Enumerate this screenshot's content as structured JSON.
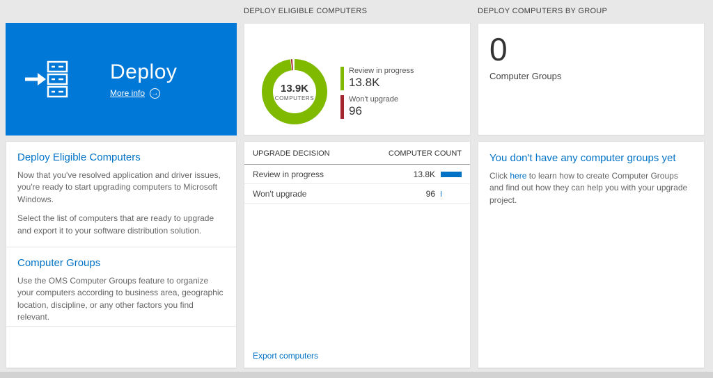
{
  "headers": {
    "middle": "DEPLOY ELIGIBLE COMPUTERS",
    "right": "DEPLOY COMPUTERS BY GROUP"
  },
  "colors": {
    "tile_blue": "#0078d7",
    "green": "#7fba00",
    "red": "#a4262c",
    "bar_blue": "#0072c6",
    "link_blue": "#0072c6"
  },
  "icons": {
    "more_info_arrow": "→"
  },
  "deploy_tile": {
    "title": "Deploy",
    "more_info": "More info"
  },
  "left_card": {
    "section1": {
      "heading": "Deploy Eligible Computers",
      "p1": "Now that you've resolved application and driver issues, you're ready to start upgrading computers to Microsoft Windows.",
      "p2": "Select the list of computers that are ready to upgrade and export it to your software distribution solution."
    },
    "section2": {
      "heading": "Computer Groups",
      "p1": "Use the OMS Computer Groups feature to organize your computers according to business area, geographic location, discipline, or any other factors you find relevant."
    }
  },
  "eligible_card": {
    "donut": {
      "center_value": "13.9K",
      "center_label": "COMPUTERS"
    },
    "legend": [
      {
        "label": "Review in progress",
        "value": "13.8K"
      },
      {
        "label": "Won't upgrade",
        "value": "96"
      }
    ],
    "table": {
      "col1": "UPGRADE DECISION",
      "col2": "COMPUTER COUNT",
      "rows": [
        {
          "label": "Review in progress",
          "value": "13.8K",
          "bar_pct": 100
        },
        {
          "label": "Won't upgrade",
          "value": "96",
          "bar_pct": 3
        }
      ]
    },
    "footer_link": "Export computers"
  },
  "groups_card": {
    "count": "0",
    "count_label": "Computer Groups",
    "empty": {
      "heading": "You don't have any computer groups yet",
      "text_before": "Click ",
      "link": "here",
      "text_after": " to learn how to create Computer Groups and find out how they can help you with your upgrade project."
    }
  },
  "chart_data": {
    "type": "pie",
    "title": "Deploy Eligible Computers",
    "labels": [
      "Review in progress",
      "Won't upgrade"
    ],
    "values": [
      13800,
      96
    ],
    "total": "13.9K COMPUTERS",
    "colors": [
      "#7fba00",
      "#a4262c"
    ],
    "legend_position": "right"
  }
}
